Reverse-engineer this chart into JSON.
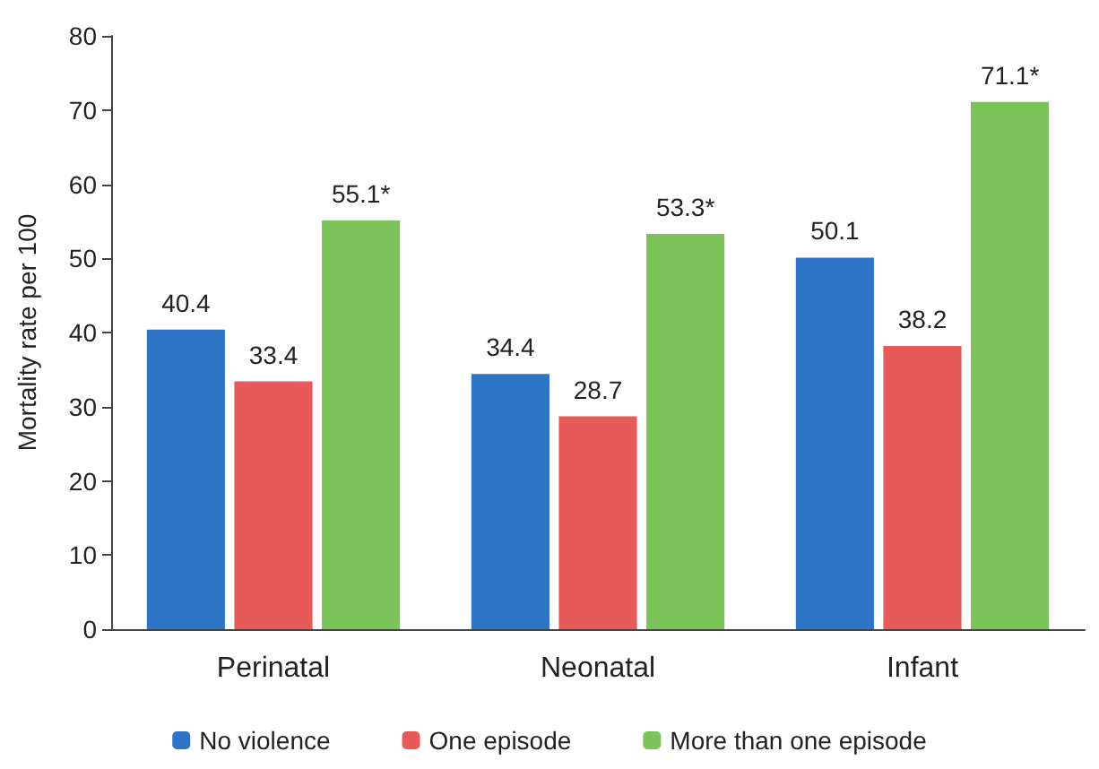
{
  "chart_data": {
    "type": "bar",
    "ylabel": "Mortality rate per 100",
    "categories": [
      "Perinatal",
      "Neonatal",
      "Infant"
    ],
    "series": [
      {
        "name": "No violence",
        "color": "#2e75c6",
        "values": [
          40.4,
          34.4,
          50.1
        ],
        "value_labels": [
          "40.4",
          "34.4",
          "50.1"
        ]
      },
      {
        "name": "One episode",
        "color": "#e65a5a",
        "values": [
          33.4,
          28.7,
          38.2
        ],
        "value_labels": [
          "33.4",
          "28.7",
          "38.2"
        ]
      },
      {
        "name": "More than one episode",
        "color": "#7cc35a",
        "values": [
          55.1,
          53.3,
          71.1
        ],
        "value_labels": [
          "55.1*",
          "53.3*",
          "71.1*"
        ]
      }
    ],
    "ylim": [
      0,
      80
    ],
    "yticks": [
      0,
      10,
      20,
      30,
      40,
      50,
      60,
      70,
      80
    ],
    "grid": false,
    "legend": "bottom"
  }
}
